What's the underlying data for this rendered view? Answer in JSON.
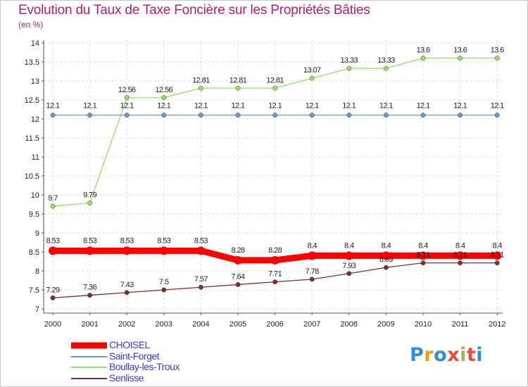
{
  "header": {
    "title": "Evolution du Taux de Taxe Foncière sur les Propriétés Bâties",
    "unit": "(en %)"
  },
  "chart_data": {
    "type": "line",
    "x": [
      "2000",
      "2001",
      "2002",
      "2003",
      "2004",
      "2005",
      "2006",
      "2007",
      "2008",
      "2009",
      "2010",
      "2011",
      "2012"
    ],
    "ylim": [
      7,
      14
    ],
    "yticks": [
      "7",
      "7.5",
      "8",
      "8.5",
      "9",
      "9.5",
      "10",
      "10.5",
      "11",
      "11.5",
      "12",
      "12.5",
      "13",
      "13.5",
      "14"
    ],
    "series": [
      {
        "name": "CHOISEL",
        "color": "#ff0000",
        "values": [
          8.53,
          8.53,
          8.53,
          8.53,
          8.53,
          8.28,
          8.28,
          8.4,
          8.4,
          8.4,
          8.4,
          8.4,
          8.4
        ],
        "labels": [
          "8.53",
          "8.53",
          "8.53",
          "8.53",
          "8.53",
          "8.28",
          "8.28",
          "8.4",
          "8.4",
          "8.4",
          "8.4",
          "8.4",
          "8.4"
        ]
      },
      {
        "name": "Saint-Forget",
        "color": "#6699cc",
        "values": [
          12.1,
          12.1,
          12.1,
          12.1,
          12.1,
          12.1,
          12.1,
          12.1,
          12.1,
          12.1,
          12.1,
          12.1,
          12.1
        ],
        "labels": [
          "12.1",
          "12.1",
          "12.1",
          "12.1",
          "12.1",
          "12.1",
          "12.1",
          "12.1",
          "12.1",
          "12.1",
          "12.1",
          "12.1",
          "12.1"
        ]
      },
      {
        "name": "Boullay-les-Troux",
        "color": "#99dd66",
        "values": [
          9.7,
          9.79,
          12.56,
          12.56,
          12.81,
          12.81,
          12.81,
          13.07,
          13.33,
          13.33,
          13.6,
          13.6,
          13.6
        ],
        "labels": [
          "9.7",
          "9.79",
          "12.56",
          "12.56",
          "12.81",
          "12.81",
          "12.81",
          "13.07",
          "13.33",
          "13.33",
          "13.6",
          "13.6",
          "13.6"
        ]
      },
      {
        "name": "Senlisse",
        "color": "#7a2e2e",
        "values": [
          7.29,
          7.36,
          7.43,
          7.5,
          7.57,
          7.64,
          7.71,
          7.78,
          7.93,
          8.09,
          8.21,
          8.21,
          8.21
        ],
        "labels": [
          "7.29",
          "7.36",
          "7.43",
          "7.5",
          "7.57",
          "7.64",
          "7.71",
          "7.78",
          "7.93",
          "8.09",
          "8.21",
          "8.21",
          "8.21"
        ]
      }
    ]
  },
  "logo": {
    "text": "Proxiti",
    "colors": [
      "#2f8fd6",
      "#f39c12",
      "#2f8fd6",
      "#e74c3c",
      "#8bc34a",
      "#e74c3c",
      "#2f8fd6"
    ]
  }
}
